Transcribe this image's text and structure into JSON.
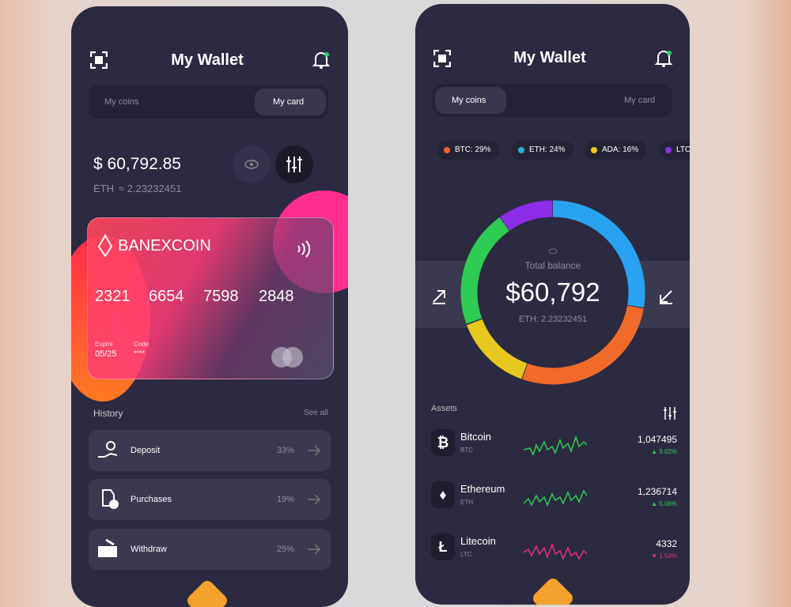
{
  "left_screen": {
    "header": {
      "title": "My Wallet"
    },
    "tabs": [
      "My coins",
      "My card"
    ],
    "balance": {
      "amount": "$ 60,792.85",
      "eth_label": "ETH",
      "eth_amount": "≈ 2.23232451"
    },
    "card": {
      "brand": "BANEXCOIN",
      "number": [
        "2321",
        "6654",
        "7598",
        "2848"
      ],
      "expire_label": "Expire",
      "expire": "05/25",
      "code_label": "Code",
      "code": "****"
    },
    "history": {
      "title": "History",
      "see_all": "See all",
      "rows": [
        {
          "label": "Deposit",
          "percent": "33%"
        },
        {
          "label": "Purchases",
          "percent": "19%"
        },
        {
          "label": "Withdraw",
          "percent": "25%"
        }
      ]
    }
  },
  "right_screen": {
    "header": {
      "title": "My Wallet"
    },
    "tabs": [
      "My coins",
      "My card"
    ],
    "legend": [
      "BTC: 29%",
      "ETH: 24%",
      "ADA: 16%",
      "LTC"
    ],
    "total": {
      "label": "Total balance",
      "amount": "$60,792",
      "eth": "ETH: 2.23232451"
    },
    "assets": {
      "title": "Assets",
      "rows": [
        {
          "name": "Bitcoin",
          "symbol": "BTC",
          "value": "1,047495",
          "change": "▲ 9.02%"
        },
        {
          "name": "Ethereum",
          "symbol": "ETH",
          "value": "1,236714",
          "change": "▲ 5.06%"
        },
        {
          "name": "Litecoin",
          "symbol": "LTC",
          "value": "4332",
          "change": "▼ 1.54%"
        }
      ]
    }
  }
}
